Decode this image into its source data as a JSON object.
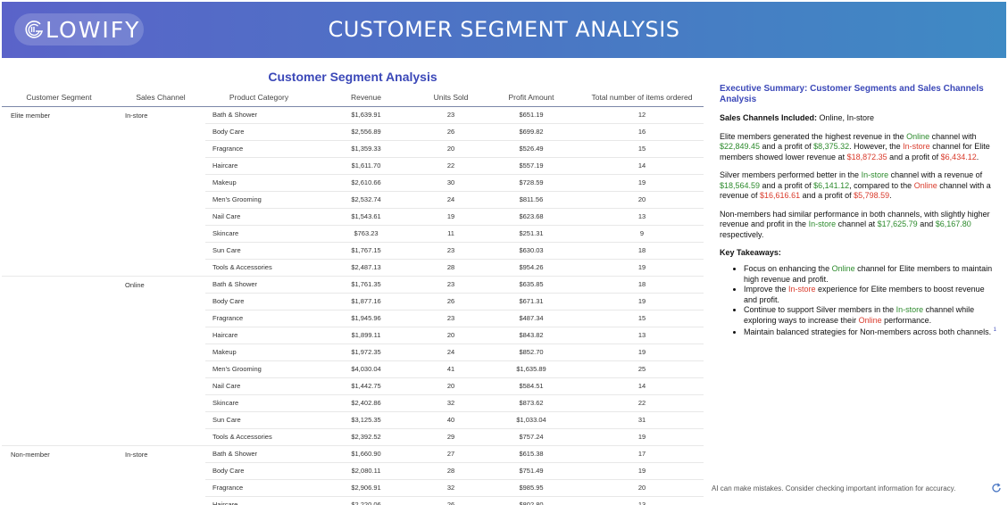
{
  "header": {
    "logo_text": "LOWIFY",
    "title": "CUSTOMER SEGMENT ANALYSIS"
  },
  "table": {
    "title": "Customer Segment Analysis",
    "columns": [
      "Customer Segment",
      "Sales Channel",
      "Product Category",
      "Revenue",
      "Units Sold",
      "Profit Amount",
      "Total number of items ordered"
    ],
    "groups": [
      {
        "segment": "Elite member",
        "channel": "In-store",
        "rows": [
          [
            "Bath & Shower",
            "$1,639.91",
            "23",
            "$651.19",
            "12"
          ],
          [
            "Body Care",
            "$2,556.89",
            "26",
            "$699.82",
            "16"
          ],
          [
            "Fragrance",
            "$1,359.33",
            "20",
            "$526.49",
            "15"
          ],
          [
            "Haircare",
            "$1,611.70",
            "22",
            "$557.19",
            "14"
          ],
          [
            "Makeup",
            "$2,610.66",
            "30",
            "$728.59",
            "19"
          ],
          [
            "Men's Grooming",
            "$2,532.74",
            "24",
            "$811.56",
            "20"
          ],
          [
            "Nail Care",
            "$1,543.61",
            "19",
            "$623.68",
            "13"
          ],
          [
            "Skincare",
            "$763.23",
            "11",
            "$251.31",
            "9"
          ],
          [
            "Sun Care",
            "$1,767.15",
            "23",
            "$630.03",
            "18"
          ],
          [
            "Tools & Accessories",
            "$2,487.13",
            "28",
            "$954.26",
            "19"
          ]
        ]
      },
      {
        "segment": "",
        "channel": "Online",
        "rows": [
          [
            "Bath & Shower",
            "$1,761.35",
            "23",
            "$635.85",
            "18"
          ],
          [
            "Body Care",
            "$1,877.16",
            "26",
            "$671.31",
            "19"
          ],
          [
            "Fragrance",
            "$1,945.96",
            "23",
            "$487.34",
            "15"
          ],
          [
            "Haircare",
            "$1,899.11",
            "20",
            "$843.82",
            "13"
          ],
          [
            "Makeup",
            "$1,972.35",
            "24",
            "$852.70",
            "19"
          ],
          [
            "Men's Grooming",
            "$4,030.04",
            "41",
            "$1,635.89",
            "25"
          ],
          [
            "Nail Care",
            "$1,442.75",
            "20",
            "$584.51",
            "14"
          ],
          [
            "Skincare",
            "$2,402.86",
            "32",
            "$873.62",
            "22"
          ],
          [
            "Sun Care",
            "$3,125.35",
            "40",
            "$1,033.04",
            "31"
          ],
          [
            "Tools & Accessories",
            "$2,392.52",
            "29",
            "$757.24",
            "19"
          ]
        ]
      },
      {
        "segment": "Non-member",
        "channel": "In-store",
        "rows": [
          [
            "Bath & Shower",
            "$1,660.90",
            "27",
            "$615.38",
            "17"
          ],
          [
            "Body Care",
            "$2,080.11",
            "28",
            "$751.49",
            "19"
          ],
          [
            "Fragrance",
            "$2,906.91",
            "32",
            "$985.95",
            "20"
          ],
          [
            "Haircare",
            "$2,220.06",
            "26",
            "$802.80",
            "13"
          ]
        ]
      }
    ]
  },
  "summary": {
    "title": "Executive Summary: Customer Segments and Sales Channels Analysis",
    "channels_label": "Sales Channels Included:",
    "channels_value": " Online, In-store",
    "p1": [
      "Elite members generated the highest revenue in the ",
      "Online",
      " channel with ",
      "$22,849.45",
      " and a profit of ",
      "$8,375.32",
      ". However, the ",
      "In-store",
      " channel for Elite members showed lower revenue at ",
      "$18,872.35",
      " and a profit of ",
      "$6,434.12",
      "."
    ],
    "p2": [
      "Silver members performed better in the ",
      "In-store",
      " channel with a revenue of ",
      "$18,564.59",
      " and a profit of ",
      "$6,141.12",
      ", compared to the ",
      "Online",
      " channel with a revenue of ",
      "$16,616.61",
      " and a profit of ",
      "$5,798.59",
      "."
    ],
    "p3": [
      "Non-members had similar performance in both channels, with slightly higher revenue and profit in the ",
      "In-store",
      " channel at ",
      "$17,625.79",
      " and ",
      "$6,167.80",
      " respectively."
    ],
    "key_heading": "Key Takeaways:",
    "bullets": [
      [
        "Focus on enhancing the ",
        "Online",
        " channel for Elite members to maintain high revenue and profit."
      ],
      [
        "Improve the ",
        "In-store",
        " experience for Elite members to boost revenue and profit."
      ],
      [
        "Continue to support Silver members in the ",
        "In-store",
        " channel while exploring ways to increase their ",
        "Online",
        " performance."
      ],
      [
        "Maintain balanced strategies for Non-members across both channels. ",
        "1"
      ]
    ]
  },
  "footer": {
    "disclaimer": "AI can make mistakes. Consider checking important information for accuracy."
  },
  "icons": {
    "logo": "logo-g-icon",
    "refresh": "refresh-icon"
  },
  "colors": {
    "accent": "#3b48b8",
    "positive": "#2c8a2c",
    "negative": "#d93a2b"
  }
}
